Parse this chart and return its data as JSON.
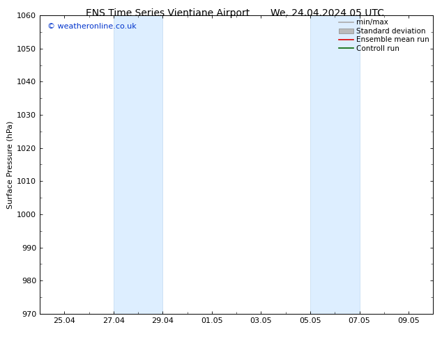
{
  "title_left": "ENS Time Series Vientiane Airport",
  "title_right": "We. 24.04.2024 05 UTC",
  "ylabel": "Surface Pressure (hPa)",
  "ylim": [
    970,
    1060
  ],
  "yticks": [
    970,
    980,
    990,
    1000,
    1010,
    1020,
    1030,
    1040,
    1050,
    1060
  ],
  "xtick_labels": [
    "25.04",
    "27.04",
    "29.04",
    "01.05",
    "03.05",
    "05.05",
    "07.05",
    "09.05"
  ],
  "xtick_positions": [
    1,
    3,
    5,
    7,
    9,
    11,
    13,
    15
  ],
  "xlim": [
    0,
    16
  ],
  "watermark": "© weatheronline.co.uk",
  "watermark_color": "#0033cc",
  "background_color": "#ffffff",
  "shaded_bands": [
    {
      "xstart": 3,
      "xend": 5,
      "color": "#ddeeff",
      "edgecolor": "#c0d8f0"
    },
    {
      "xstart": 11,
      "xend": 13,
      "color": "#ddeeff",
      "edgecolor": "#c0d8f0"
    }
  ],
  "legend_items": [
    {
      "label": "min/max",
      "color": "#aaaaaa",
      "style": "line"
    },
    {
      "label": "Standard deviation",
      "color": "#bbbbbb",
      "style": "box"
    },
    {
      "label": "Ensemble mean run",
      "color": "#dd0000",
      "style": "line"
    },
    {
      "label": "Controll run",
      "color": "#006600",
      "style": "line"
    }
  ],
  "title_fontsize": 10,
  "tick_label_fontsize": 8,
  "ylabel_fontsize": 8,
  "watermark_fontsize": 8,
  "legend_fontsize": 7.5
}
